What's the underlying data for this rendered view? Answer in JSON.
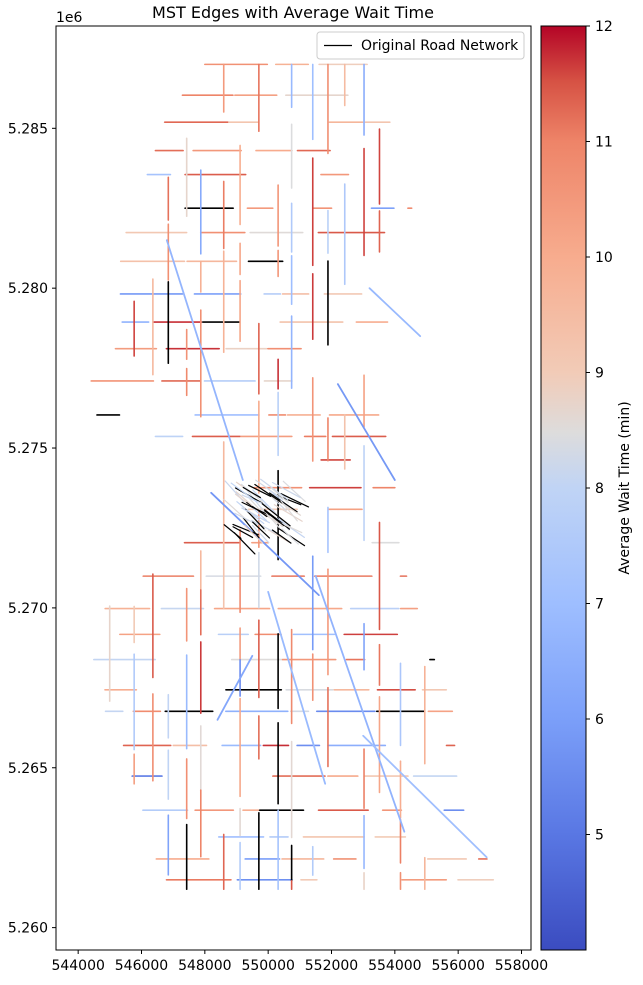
{
  "chart_data": {
    "type": "line",
    "title": "MST Edges with Average Wait Time",
    "xlabel": "",
    "ylabel": "",
    "xlim": [
      543300,
      558300
    ],
    "ylim": [
      5259300,
      5288200
    ],
    "x_ticks": [
      544000,
      546000,
      548000,
      550000,
      552000,
      554000,
      556000,
      558000
    ],
    "y_ticks": [
      5260000,
      5265000,
      5270000,
      5275000,
      5280000,
      5285000
    ],
    "y_tick_labels": [
      "5.260",
      "5.265",
      "5.270",
      "5.275",
      "5.280",
      "5.285"
    ],
    "y_offset_label": "1e6",
    "legend": {
      "placement": "top-right",
      "entries": [
        {
          "label": "Original Road Network",
          "color": "#000000"
        }
      ]
    },
    "colorbar": {
      "label": "Average Wait Time (min)",
      "colormap": "coolwarm",
      "vmin": 4,
      "vmax": 12,
      "ticks": [
        5,
        6,
        7,
        8,
        9,
        10,
        11,
        12
      ],
      "tick_labels": [
        "5",
        "6",
        "7",
        "8",
        "9",
        "10",
        "11",
        "12"
      ]
    },
    "series": [
      {
        "name": "Original Road Network",
        "color": "#000000",
        "role": "road-network"
      }
    ]
  },
  "colors": {
    "cool": "#3b4cc0",
    "neutral": "#dddcdc",
    "warm": "#b40426"
  }
}
